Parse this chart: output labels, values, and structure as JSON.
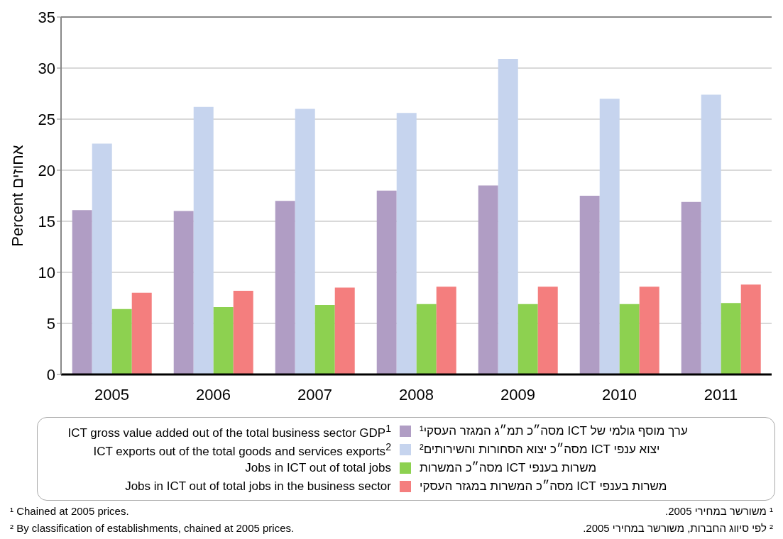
{
  "chart_data": {
    "type": "bar",
    "categories": [
      "2005",
      "2006",
      "2007",
      "2008",
      "2009",
      "2010",
      "2011"
    ],
    "ylabel": "Percent אחוזים",
    "ylim": [
      0,
      35
    ],
    "yticks": [
      0,
      5,
      10,
      15,
      20,
      25,
      30,
      35
    ],
    "grid": "y",
    "legend": "bottom",
    "series": [
      {
        "name": "ICT gross value added out of the total business sector GDP$^{1}$",
        "color": "#b09dc4",
        "values": [
          16.1,
          16.0,
          17.0,
          18.0,
          18.5,
          17.5,
          16.9
        ]
      },
      {
        "name": "ICT exports out of the total goods and services exports$^{2}$",
        "color": "#c6d4ee",
        "values": [
          22.6,
          26.2,
          26.0,
          25.6,
          30.9,
          27.0,
          27.4
        ]
      },
      {
        "name": "Jobs in ICT out of total jobs",
        "color": "#8dd150",
        "values": [
          6.4,
          6.6,
          6.8,
          6.9,
          6.9,
          6.9,
          7.0
        ]
      },
      {
        "name": "Jobs in ICT out of total jobs in the business sector",
        "color": "#f47e7e",
        "values": [
          8.0,
          8.2,
          8.5,
          8.6,
          8.6,
          8.6,
          8.8
        ]
      }
    ],
    "annotations": [
      "ערך מוסף גולמי של ICT מסה״כ תמ״ג המגזר העסקי¹",
      "יצוא ענפי ICT מסה״כ יצוא הסחורות והשירותים²",
      "משרות בענפי ICT מסה״כ המשרות",
      "משרות בענפי ICT מסה״כ המשרות במגזר העסקי",
      "¹ Chained at 2005 prices.",
      "² By classification of establishments, chained at 2005 prices.",
      "¹ משורשר במחירי 2005.",
      "² לפי סיווג החברות, משורשר במחירי 2005."
    ]
  }
}
